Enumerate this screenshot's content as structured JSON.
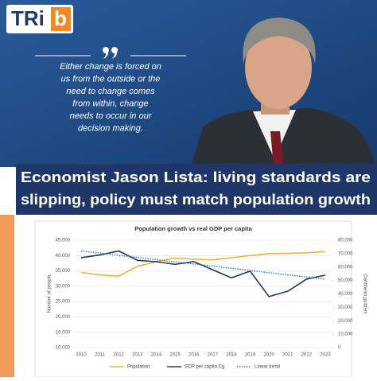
{
  "logo": {
    "main": "TRi",
    "accent": "b"
  },
  "quote": {
    "lines": [
      "Either change is forced on",
      "us from the outside or the",
      "need to change comes",
      "from within, change",
      "needs to occur in our",
      "decision making."
    ]
  },
  "headline": {
    "lines": [
      "Economist Jason Lista: living standards are",
      "slipping, policy must match population growth"
    ]
  },
  "chart_data": {
    "type": "line",
    "title": "Population growth vs real GDP per capita",
    "y_label": "Number of people",
    "y2_label": "Caribbean guilders",
    "categories": [
      "2010",
      "2011",
      "2012",
      "2013",
      "2014",
      "2015",
      "2016",
      "2017",
      "2018",
      "2019",
      "2020",
      "2021",
      "2022",
      "2023"
    ],
    "series": [
      {
        "name": "Population",
        "color": "#f2b134",
        "style": "solid",
        "values": [
          34500,
          33700,
          33300,
          36500,
          38000,
          39200,
          38800,
          38600,
          39300,
          40000,
          40600,
          40700,
          40900,
          41300
        ]
      },
      {
        "name": "GDP per capita Cg",
        "color": "#1f3864",
        "style": "solid",
        "axis": "y2",
        "values": [
          67000,
          69000,
          72000,
          65000,
          64000,
          62000,
          64000,
          58000,
          52000,
          57000,
          38000,
          42000,
          51000,
          54000
        ]
      },
      {
        "name": "Linear trend",
        "color": "#2e75b6",
        "style": "dotted",
        "axis": "y2",
        "values": [
          72000,
          70400,
          68800,
          67200,
          65500,
          63900,
          62300,
          60700,
          59100,
          57400,
          55800,
          54200,
          52600,
          51000
        ]
      }
    ],
    "ylim": [
      10000,
      45000
    ],
    "yticks": [
      {
        "value": 10000,
        "label": "10,000"
      },
      {
        "value": 15000,
        "label": "15,000"
      },
      {
        "value": 20000,
        "label": "20,000"
      },
      {
        "value": 25000,
        "label": "25,000"
      },
      {
        "value": 30000,
        "label": "30,000"
      },
      {
        "value": 35000,
        "label": "35,000"
      },
      {
        "value": 40000,
        "label": "40,000"
      },
      {
        "value": 45000,
        "label": "45,000"
      }
    ],
    "y2lim": [
      0,
      80000
    ],
    "y2ticks": [
      0,
      {
        "value": 10000,
        "label": "10,000"
      },
      {
        "value": 20000,
        "label": "20,000"
      },
      {
        "value": 30000,
        "label": "30,000"
      },
      {
        "value": 40000,
        "label": "40,000"
      },
      {
        "value": 50000,
        "label": "50,000"
      },
      {
        "value": 60000,
        "label": "60,000"
      },
      {
        "value": 70000,
        "label": "70,000"
      },
      {
        "value": 80000,
        "label": "80,000"
      }
    ],
    "grid": true,
    "legend": "bottom"
  }
}
